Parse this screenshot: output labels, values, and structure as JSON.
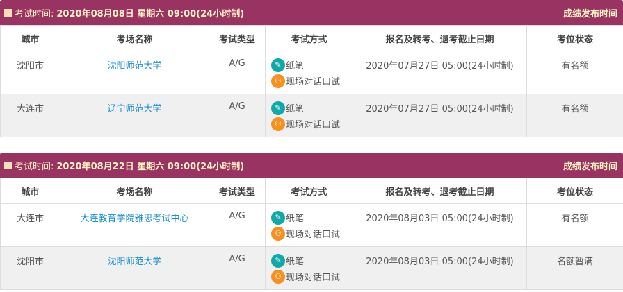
{
  "columns": [
    "城市",
    "考场名称",
    "考试类型",
    "考试方式",
    "报名及转考、退考截止日期",
    "考位状态"
  ],
  "exam_label": "考试时间:",
  "result_label": "成绩发布时间",
  "methods": [
    {
      "icon": "pencil-icon",
      "label": "纸笔"
    },
    {
      "icon": "people-icon",
      "label": "现场对话口试"
    }
  ],
  "colors": {
    "header": "#993362",
    "header_text": "#fff3c4",
    "link": "#1a8fd0",
    "pen": "#11a8a8",
    "speak": "#f7901e"
  },
  "blocks": [
    {
      "date": "2020年08月08日 星期六 09:00(24小时制)",
      "rows": [
        {
          "city": "沈阳市",
          "venue": "沈阳师范大学",
          "type": "A/G",
          "deadline": "2020年07月27日 05:00(24小时制)",
          "status": "有名额"
        },
        {
          "city": "大连市",
          "venue": "辽宁师范大学",
          "type": "A/G",
          "deadline": "2020年07月27日 05:00(24小时制)",
          "status": "有名额"
        }
      ]
    },
    {
      "date": "2020年08月22日 星期六 09:00(24小时制)",
      "rows": [
        {
          "city": "大连市",
          "venue": "大连教育学院雅思考试中心",
          "type": "A/G",
          "deadline": "2020年08月03日 05:00(24小时制)",
          "status": "有名额"
        },
        {
          "city": "沈阳市",
          "venue": "沈阳师范大学",
          "type": "A/G",
          "deadline": "2020年08月03日 05:00(24小时制)",
          "status": "名额暂满"
        }
      ]
    }
  ]
}
